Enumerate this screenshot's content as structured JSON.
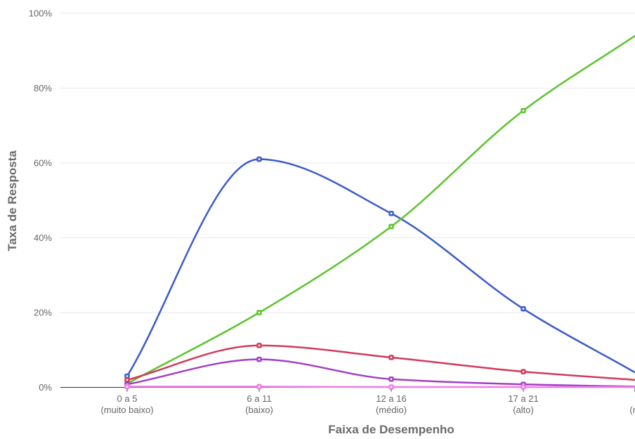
{
  "chart_data": {
    "type": "line",
    "title": "",
    "xlabel": "Faixa de Desempenho",
    "ylabel": "Taxa de Resposta",
    "ylim": [
      0,
      100
    ],
    "y_ticks": [
      "0%",
      "20%",
      "40%",
      "60%",
      "80%",
      "100%"
    ],
    "y_tick_values": [
      0,
      20,
      40,
      60,
      80,
      100
    ],
    "categories": [
      {
        "line1": "0 a 5",
        "line2": "(muito baixo)"
      },
      {
        "line1": "6 a 11",
        "line2": "(baixo)"
      },
      {
        "line1": "12 a 16",
        "line2": "(médio)"
      },
      {
        "line1": "17 a 21",
        "line2": "(alto)"
      },
      {
        "line1": "",
        "line2": "(m"
      }
    ],
    "grid": true,
    "legend": "none",
    "series": [
      {
        "color": "#3b5bc9",
        "values": [
          3,
          61,
          46.5,
          21,
          4
        ]
      },
      {
        "color": "#5cc32c",
        "values": [
          1,
          20,
          43,
          74,
          94
        ]
      },
      {
        "color": "#d13a5c",
        "values": [
          2,
          11.2,
          8,
          4.2,
          2
        ]
      },
      {
        "color": "#a23ec6",
        "values": [
          0.8,
          7.5,
          2.2,
          0.8,
          0.2
        ]
      },
      {
        "color": "#f07ee6",
        "values": [
          0.2,
          0.2,
          0.1,
          0.1,
          0.1
        ]
      }
    ]
  }
}
